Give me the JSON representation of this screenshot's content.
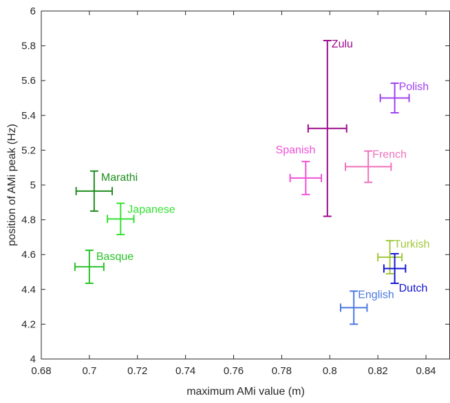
{
  "chart_data": {
    "type": "scatter",
    "title": "",
    "xlabel": "maximum AMi value (m)",
    "ylabel": "position of AMi peak (Hz)",
    "xlim": [
      0.68,
      0.85
    ],
    "ylim": [
      4,
      6
    ],
    "xticks": [
      "0.68",
      "0.7",
      "0.72",
      "0.74",
      "0.76",
      "0.78",
      "0.8",
      "0.82",
      "0.84"
    ],
    "yticks": [
      "4",
      "4.2",
      "4.4",
      "4.6",
      "4.8",
      "5",
      "5.2",
      "5.4",
      "5.6",
      "5.8",
      "6"
    ],
    "grid": false,
    "error_bars": true,
    "points": [
      {
        "name": "Marathi",
        "x": 0.702,
        "y": 4.965,
        "xerr": 0.0075,
        "yerr": 0.115,
        "color": "#1e8c1e",
        "label_side": "right"
      },
      {
        "name": "Japanese",
        "x": 0.713,
        "y": 4.805,
        "xerr": 0.0055,
        "yerr": 0.09,
        "color": "#33e033",
        "label_side": "right"
      },
      {
        "name": "Basque",
        "x": 0.7,
        "y": 4.53,
        "xerr": 0.006,
        "yerr": 0.095,
        "color": "#28c228",
        "label_side": "right"
      },
      {
        "name": "Spanish",
        "x": 0.79,
        "y": 5.04,
        "xerr": 0.0065,
        "yerr": 0.095,
        "color": "#f050d8",
        "label_side": "above-left"
      },
      {
        "name": "Zulu",
        "x": 0.799,
        "y": 5.325,
        "xerr": 0.008,
        "yerr": 0.505,
        "color": "#9c0a8c",
        "label_side": "above-right"
      },
      {
        "name": "French",
        "x": 0.816,
        "y": 5.105,
        "xerr": 0.0095,
        "yerr": 0.09,
        "color": "#f070bc",
        "label_side": "above-right"
      },
      {
        "name": "Polish",
        "x": 0.827,
        "y": 5.5,
        "xerr": 0.006,
        "yerr": 0.085,
        "color": "#a040f0",
        "label_side": "above-right"
      },
      {
        "name": "Turkish",
        "x": 0.825,
        "y": 4.585,
        "xerr": 0.005,
        "yerr": 0.095,
        "color": "#a0c83a",
        "label_side": "above-right"
      },
      {
        "name": "Dutch",
        "x": 0.827,
        "y": 4.52,
        "xerr": 0.0045,
        "yerr": 0.085,
        "color": "#1414d2",
        "label_side": "below-right"
      },
      {
        "name": "English",
        "x": 0.81,
        "y": 4.295,
        "xerr": 0.0055,
        "yerr": 0.095,
        "color": "#4a78e0",
        "label_side": "above-right"
      }
    ]
  }
}
